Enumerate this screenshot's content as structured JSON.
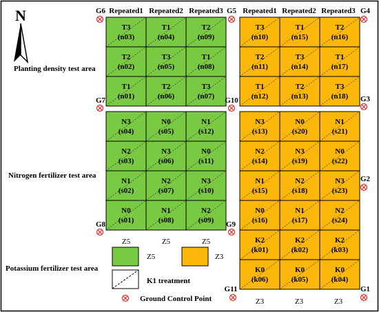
{
  "colors": {
    "green": "#7AC943",
    "orange": "#FBB80A",
    "gcp_red": "#E03030",
    "border": "#000000"
  },
  "north_label": "N",
  "areas": {
    "density": "Planting density test area",
    "nitrogen": "Nitrogen  fertilizer test area",
    "potassium": "Potassium fertilizer test area"
  },
  "headers": {
    "left": [
      "Repeated1",
      "Repeated2",
      "Repeated3"
    ],
    "right": [
      "Repeated1",
      "Repeated2",
      "Repeated3"
    ]
  },
  "gcp_labels": [
    "G1",
    "G2",
    "G3",
    "G4",
    "G5",
    "G6",
    "G7",
    "G8",
    "G9",
    "G10",
    "G11"
  ],
  "left_density": [
    [
      [
        "T3",
        "(n03)"
      ],
      [
        "T1",
        "(n04)"
      ],
      [
        "T2",
        "(n09)"
      ]
    ],
    [
      [
        "T2",
        "(n02)"
      ],
      [
        "T3",
        "(n05)"
      ],
      [
        "T1",
        "(n08)"
      ]
    ],
    [
      [
        "T1",
        "(n01)"
      ],
      [
        "T2",
        "(n06)"
      ],
      [
        "T3",
        "(n07)"
      ]
    ]
  ],
  "right_density": [
    [
      [
        "T3",
        "(n10)"
      ],
      [
        "T1",
        "(n15)"
      ],
      [
        "T2",
        "(n16)"
      ]
    ],
    [
      [
        "T2",
        "(n11)"
      ],
      [
        "T3",
        "(n14)"
      ],
      [
        "T1",
        "(n17)"
      ]
    ],
    [
      [
        "T1",
        "(n12)"
      ],
      [
        "T2",
        "(n13)"
      ],
      [
        "T3",
        "(n18)"
      ]
    ]
  ],
  "left_nitrogen": [
    [
      [
        "N3",
        "(s04)"
      ],
      [
        "N0",
        "(s05)"
      ],
      [
        "N1",
        "(s12)"
      ]
    ],
    [
      [
        "N2",
        "(s03)"
      ],
      [
        "N3",
        "(s06)"
      ],
      [
        "N0",
        "(s11)"
      ]
    ],
    [
      [
        "N1",
        "(s02)"
      ],
      [
        "N2",
        "(s07)"
      ],
      [
        "N3",
        "(s10)"
      ]
    ],
    [
      [
        "N0",
        "(s01)"
      ],
      [
        "N1",
        "(s08)"
      ],
      [
        "N2",
        "(s09)"
      ]
    ]
  ],
  "right_nitrogen": [
    [
      [
        "N3",
        "(s13)"
      ],
      [
        "N0",
        "(s20)"
      ],
      [
        "N1",
        "(s21)"
      ]
    ],
    [
      [
        "N2",
        "(s14)"
      ],
      [
        "N3",
        "(s19)"
      ],
      [
        "N0",
        "(s22)"
      ]
    ],
    [
      [
        "N1",
        "(s15)"
      ],
      [
        "N2",
        "(s18)"
      ],
      [
        "N3",
        "(s23)"
      ]
    ],
    [
      [
        "N0",
        "(s16)"
      ],
      [
        "N1",
        "(s17)"
      ],
      [
        "N2",
        "(s24)"
      ]
    ]
  ],
  "right_potassium": [
    [
      [
        "K2",
        "(k01)"
      ],
      [
        "K2",
        "(k02)"
      ],
      [
        "K2",
        "(k03)"
      ]
    ],
    [
      [
        "K0",
        "(k06)"
      ],
      [
        "K0",
        "(k05)"
      ],
      [
        "K0",
        "(k04)"
      ]
    ]
  ],
  "zone_labels": {
    "left": [
      "Z5",
      "Z5",
      "Z5"
    ],
    "right": [
      "Z3",
      "Z3",
      "Z3"
    ]
  },
  "legend": {
    "z5": "Z5",
    "z3": "Z3",
    "k1": "K1 treatment",
    "gcp": "Ground Control Point"
  }
}
